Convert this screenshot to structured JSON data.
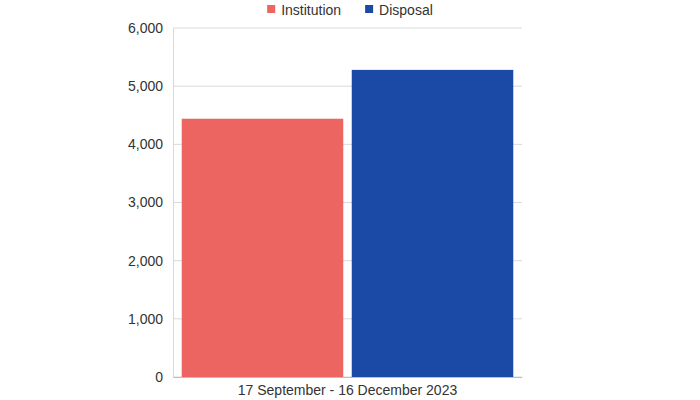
{
  "chart_data": {
    "type": "bar",
    "categories": [
      "17 September - 16 December 2023"
    ],
    "series": [
      {
        "name": "Institution",
        "color": "#ec6561",
        "values": [
          4440
        ]
      },
      {
        "name": "Disposal",
        "color": "#1a4aa5",
        "values": [
          5280
        ]
      }
    ],
    "ylim": [
      0,
      6000
    ],
    "yticks": [
      0,
      {
        "value": 1000,
        "label": "1,000"
      },
      {
        "value": 2000,
        "label": "2,000"
      },
      {
        "value": 3000,
        "label": "3,000"
      },
      {
        "value": 4000,
        "label": "4,000"
      },
      {
        "value": 5000,
        "label": "5,000"
      },
      {
        "value": 6000,
        "label": "6,000"
      }
    ],
    "grid": true,
    "legend": "top"
  }
}
